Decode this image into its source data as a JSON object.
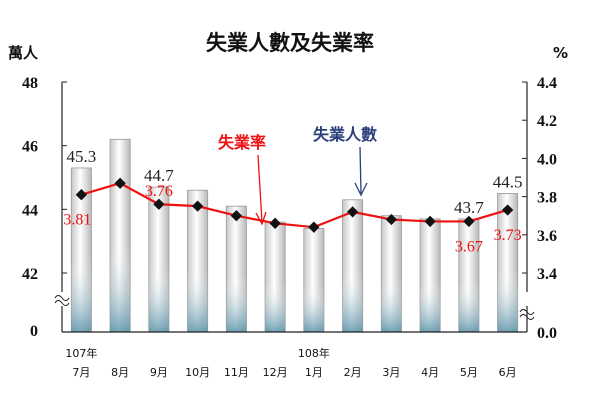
{
  "chart_data": {
    "type": "bar+line",
    "title": "失業人數及失業率",
    "left_unit": "萬人",
    "right_unit": "%",
    "categories": [
      "7月",
      "8月",
      "9月",
      "10月",
      "11月",
      "12月",
      "1月",
      "2月",
      "3月",
      "4月",
      "5月",
      "6月"
    ],
    "year_labels": [
      {
        "index": 0,
        "text": "107年"
      },
      {
        "index": 6,
        "text": "108年"
      }
    ],
    "left_axis": {
      "ylim": [
        40,
        48
      ],
      "ticks": [
        "42",
        "44",
        "46",
        "48"
      ],
      "break_label": "0"
    },
    "right_axis": {
      "ylim": [
        3.2,
        4.4
      ],
      "ticks": [
        "3.4",
        "3.6",
        "3.8",
        "4.0",
        "4.2",
        "4.4"
      ],
      "break_label": "0.0"
    },
    "series": [
      {
        "name": "失業人數",
        "type": "bar",
        "values": [
          45.3,
          46.2,
          44.7,
          44.6,
          44.1,
          43.6,
          43.4,
          44.3,
          43.8,
          43.7,
          43.7,
          44.5
        ]
      },
      {
        "name": "失業率",
        "type": "line",
        "values": [
          3.81,
          3.87,
          3.76,
          3.75,
          3.7,
          3.66,
          3.64,
          3.72,
          3.68,
          3.67,
          3.67,
          3.73
        ]
      }
    ],
    "bar_labels": [
      {
        "index": 0,
        "text": "45.3"
      },
      {
        "index": 2,
        "text": "44.7"
      },
      {
        "index": 10,
        "text": "43.7"
      },
      {
        "index": 11,
        "text": "44.5"
      }
    ],
    "line_labels": [
      {
        "index": 0,
        "text": "3.81"
      },
      {
        "index": 2,
        "text": "3.76"
      },
      {
        "index": 10,
        "text": "3.67"
      },
      {
        "index": 11,
        "text": "3.73"
      }
    ],
    "annotations": {
      "rate": "失業率",
      "employment": "失業人數"
    },
    "colors": {
      "line": "#ee1111",
      "marker": "#111111",
      "bar_edge": "#9a9a9a",
      "bar_base": "#5a94aa"
    }
  }
}
